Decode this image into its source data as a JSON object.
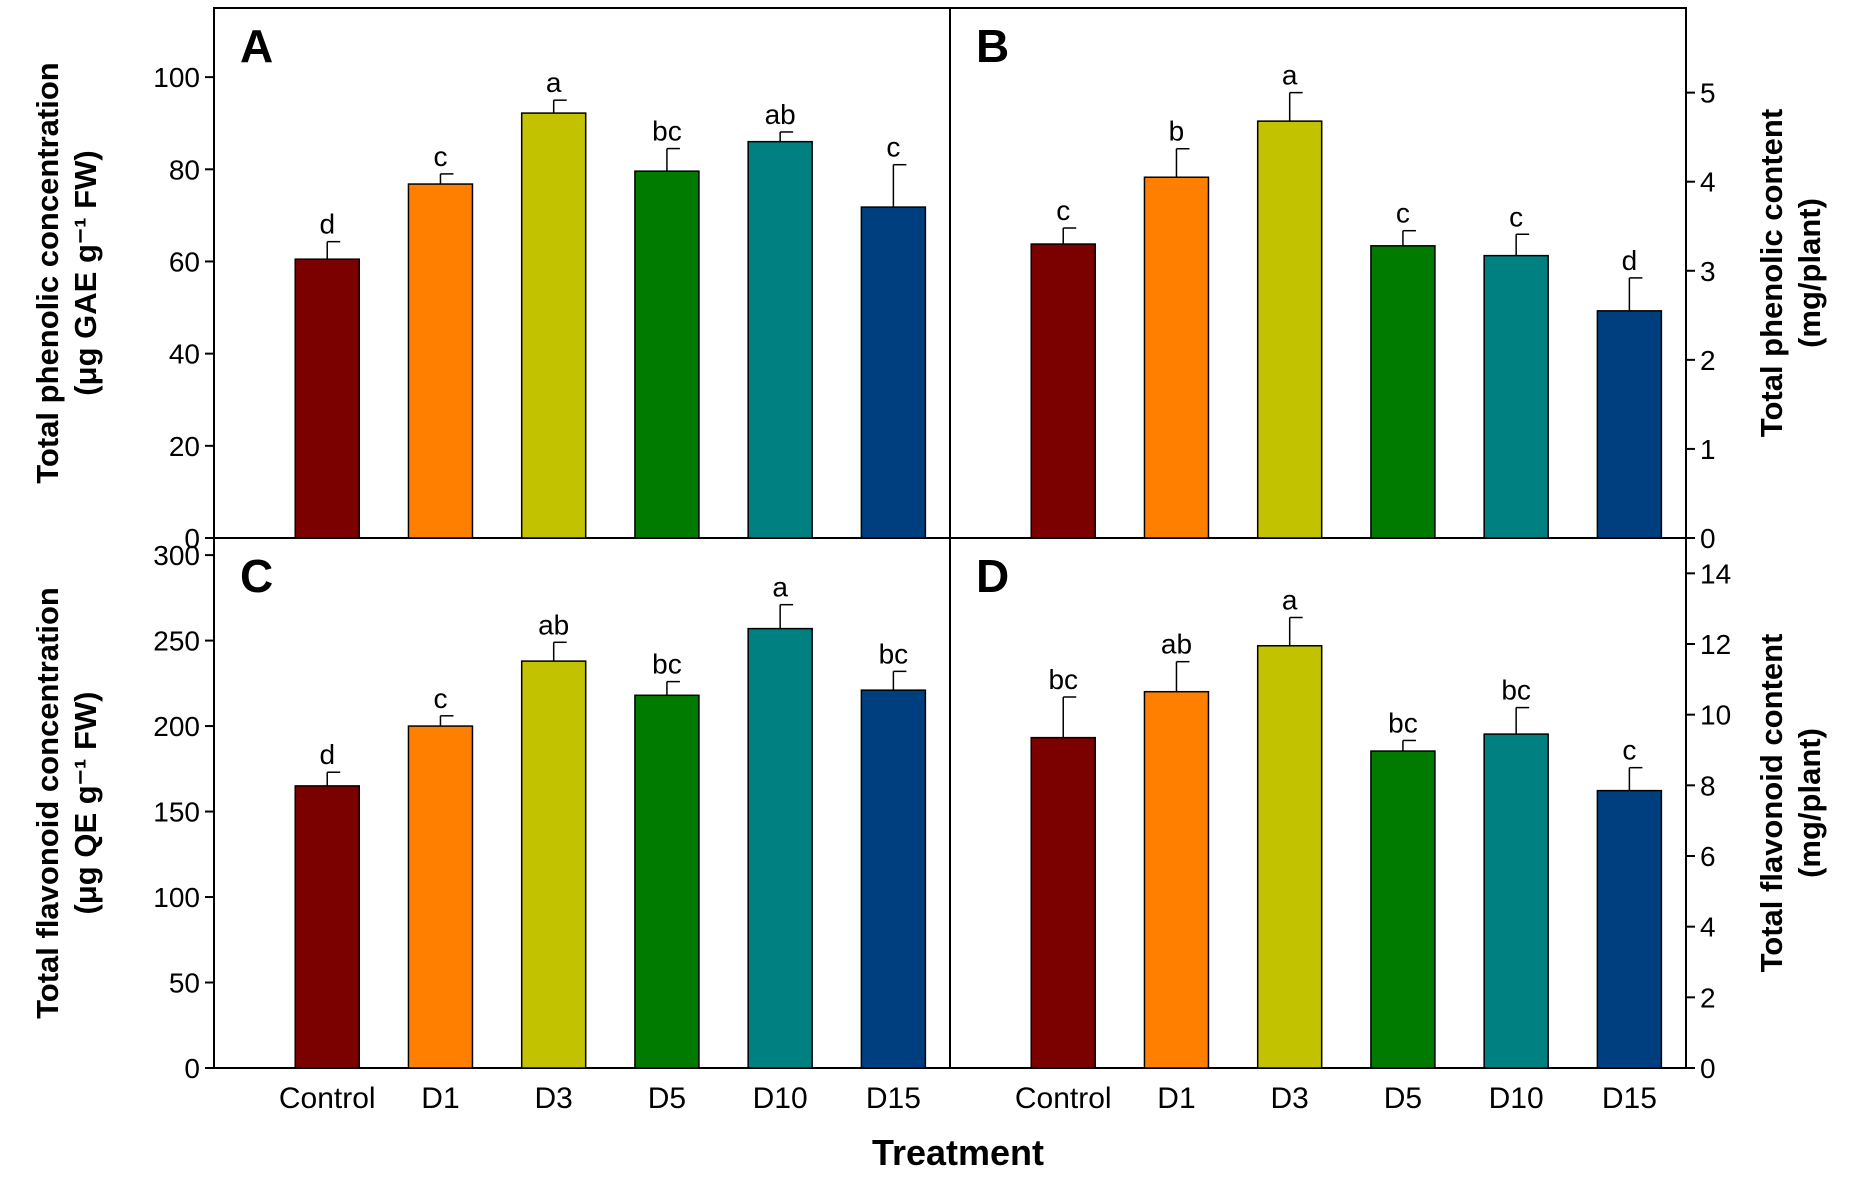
{
  "chart_data": [
    {
      "panel": "A",
      "type": "bar",
      "categories": [
        "Control",
        "D1",
        "D3",
        "D5",
        "D10",
        "D15"
      ],
      "values": [
        60.5,
        76.8,
        92.2,
        79.6,
        86.0,
        71.8
      ],
      "errors": [
        3.8,
        2.2,
        2.8,
        4.9,
        2.1,
        9.2
      ],
      "letters": [
        "d",
        "c",
        "a",
        "bc",
        "ab",
        "c"
      ],
      "ylabel_line1": "Total phenolic concentration",
      "ylabel_line2": "(μg GAE g⁻¹ FW)",
      "ylim": [
        0,
        115
      ],
      "yticks": [
        0,
        20,
        40,
        60,
        80,
        100
      ],
      "axis_side": "left"
    },
    {
      "panel": "B",
      "type": "bar",
      "categories": [
        "Control",
        "D1",
        "D3",
        "D5",
        "D10",
        "D15"
      ],
      "values": [
        3.3,
        4.05,
        4.68,
        3.28,
        3.17,
        2.55
      ],
      "errors": [
        0.18,
        0.32,
        0.32,
        0.17,
        0.24,
        0.37
      ],
      "letters": [
        "c",
        "b",
        "a",
        "c",
        "c",
        "d"
      ],
      "ylabel_line1": "Total phenolic content",
      "ylabel_line2": "(mg/plant)",
      "ylim": [
        0,
        5.95
      ],
      "yticks": [
        0,
        1,
        2,
        3,
        4,
        5
      ],
      "axis_side": "right"
    },
    {
      "panel": "C",
      "type": "bar",
      "categories": [
        "Control",
        "D1",
        "D3",
        "D5",
        "D10",
        "D15"
      ],
      "values": [
        165,
        200,
        238,
        218,
        257,
        221
      ],
      "errors": [
        8,
        6,
        11,
        8,
        14,
        11
      ],
      "letters": [
        "d",
        "c",
        "ab",
        "bc",
        "a",
        "bc"
      ],
      "ylabel_line1": "Total flavonoid concentration",
      "ylabel_line2": "(μg QE g⁻¹ FW)",
      "ylim": [
        0,
        310
      ],
      "yticks": [
        0,
        50,
        100,
        150,
        200,
        250,
        300
      ],
      "axis_side": "left"
    },
    {
      "panel": "D",
      "type": "bar",
      "categories": [
        "Control",
        "D1",
        "D3",
        "D5",
        "D10",
        "D15"
      ],
      "values": [
        9.35,
        10.65,
        11.95,
        8.97,
        9.45,
        7.85
      ],
      "errors": [
        1.15,
        0.85,
        0.8,
        0.3,
        0.75,
        0.65
      ],
      "letters": [
        "bc",
        "ab",
        "a",
        "bc",
        "bc",
        "c"
      ],
      "ylabel_line1": "Total flavonoid content",
      "ylabel_line2": "(mg/plant)",
      "ylim": [
        0,
        15.0
      ],
      "yticks": [
        0,
        2,
        4,
        6,
        8,
        10,
        12,
        14
      ],
      "axis_side": "right"
    }
  ],
  "bar_colors": [
    "#7b0000",
    "#ff7f00",
    "#c2c200",
    "#007b00",
    "#008080",
    "#003f7f"
  ],
  "xlabel": "Treatment"
}
